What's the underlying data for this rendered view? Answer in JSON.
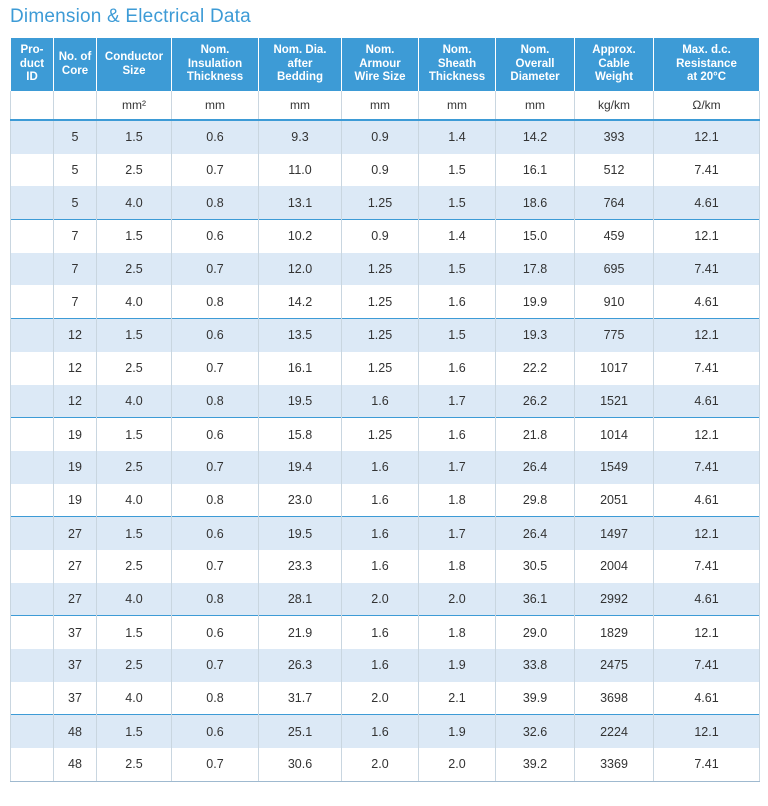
{
  "title": "Dimension & Electrical Data",
  "headers": [
    "Pro-\nduct\nID",
    "No. of\nCore",
    "Conductor\nSize",
    "Nom.\nInsulation\nThickness",
    "Nom. Dia.\nafter\nBedding",
    "Nom.\nArmour\nWire Size",
    "Nom.\nSheath\nThickness",
    "Nom.\nOverall\nDiameter",
    "Approx.\nCable\nWeight",
    "Max. d.c.\nResistance\nat 20°C"
  ],
  "units": [
    "",
    "",
    "mm²",
    "mm",
    "mm",
    "mm",
    "mm",
    "mm",
    "kg/km",
    "Ω/km"
  ],
  "rows": [
    [
      "",
      "5",
      "1.5",
      "0.6",
      "9.3",
      "0.9",
      "1.4",
      "14.2",
      "393",
      "12.1"
    ],
    [
      "",
      "5",
      "2.5",
      "0.7",
      "11.0",
      "0.9",
      "1.5",
      "16.1",
      "512",
      "7.41"
    ],
    [
      "",
      "5",
      "4.0",
      "0.8",
      "13.1",
      "1.25",
      "1.5",
      "18.6",
      "764",
      "4.61"
    ],
    [
      "",
      "7",
      "1.5",
      "0.6",
      "10.2",
      "0.9",
      "1.4",
      "15.0",
      "459",
      "12.1"
    ],
    [
      "",
      "7",
      "2.5",
      "0.7",
      "12.0",
      "1.25",
      "1.5",
      "17.8",
      "695",
      "7.41"
    ],
    [
      "",
      "7",
      "4.0",
      "0.8",
      "14.2",
      "1.25",
      "1.6",
      "19.9",
      "910",
      "4.61"
    ],
    [
      "",
      "12",
      "1.5",
      "0.6",
      "13.5",
      "1.25",
      "1.5",
      "19.3",
      "775",
      "12.1"
    ],
    [
      "",
      "12",
      "2.5",
      "0.7",
      "16.1",
      "1.25",
      "1.6",
      "22.2",
      "1017",
      "7.41"
    ],
    [
      "",
      "12",
      "4.0",
      "0.8",
      "19.5",
      "1.6",
      "1.7",
      "26.2",
      "1521",
      "4.61"
    ],
    [
      "",
      "19",
      "1.5",
      "0.6",
      "15.8",
      "1.25",
      "1.6",
      "21.8",
      "1014",
      "12.1"
    ],
    [
      "",
      "19",
      "2.5",
      "0.7",
      "19.4",
      "1.6",
      "1.7",
      "26.4",
      "1549",
      "7.41"
    ],
    [
      "",
      "19",
      "4.0",
      "0.8",
      "23.0",
      "1.6",
      "1.8",
      "29.8",
      "2051",
      "4.61"
    ],
    [
      "",
      "27",
      "1.5",
      "0.6",
      "19.5",
      "1.6",
      "1.7",
      "26.4",
      "1497",
      "12.1"
    ],
    [
      "",
      "27",
      "2.5",
      "0.7",
      "23.3",
      "1.6",
      "1.8",
      "30.5",
      "2004",
      "7.41"
    ],
    [
      "",
      "27",
      "4.0",
      "0.8",
      "28.1",
      "2.0",
      "2.0",
      "36.1",
      "2992",
      "4.61"
    ],
    [
      "",
      "37",
      "1.5",
      "0.6",
      "21.9",
      "1.6",
      "1.8",
      "29.0",
      "1829",
      "12.1"
    ],
    [
      "",
      "37",
      "2.5",
      "0.7",
      "26.3",
      "1.6",
      "1.9",
      "33.8",
      "2475",
      "7.41"
    ],
    [
      "",
      "37",
      "4.0",
      "0.8",
      "31.7",
      "2.0",
      "2.1",
      "39.9",
      "3698",
      "4.61"
    ],
    [
      "",
      "48",
      "1.5",
      "0.6",
      "25.1",
      "1.6",
      "1.9",
      "32.6",
      "2224",
      "12.1"
    ],
    [
      "",
      "48",
      "2.5",
      "0.7",
      "30.6",
      "2.0",
      "2.0",
      "39.2",
      "3369",
      "7.41"
    ]
  ],
  "colors": {
    "accent": "#3d9bd6",
    "row_alt": "#dce9f6",
    "text": "#333333"
  }
}
